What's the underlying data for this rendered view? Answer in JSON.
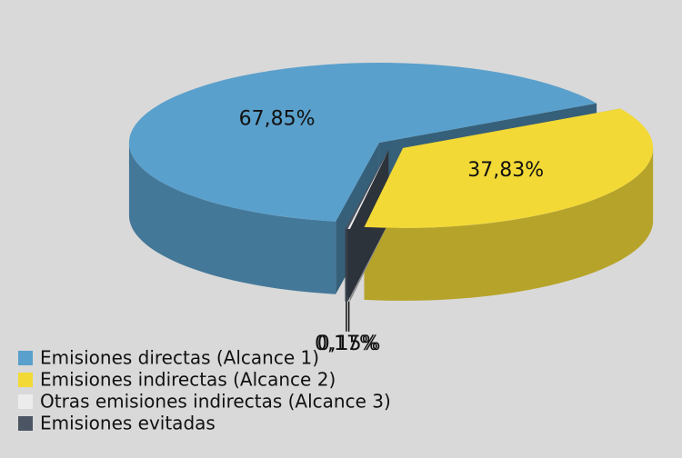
{
  "chart_data": {
    "type": "pie",
    "categories": [
      "Emisiones directas (Alcance 1)",
      "Emisiones indirectas (Alcance 2)",
      "Otras emisiones indirectas (Alcance 3)",
      "Emisiones evitadas"
    ],
    "values": [
      67.85,
      37.83,
      0.15,
      0.17
    ],
    "value_labels": [
      "67,85%",
      "37,83%",
      "0,15%",
      "0,17%"
    ],
    "colors": [
      "#5aa0cc",
      "#f2d936",
      "#ececec",
      "#4b5563"
    ],
    "legend": "bottom-left"
  }
}
